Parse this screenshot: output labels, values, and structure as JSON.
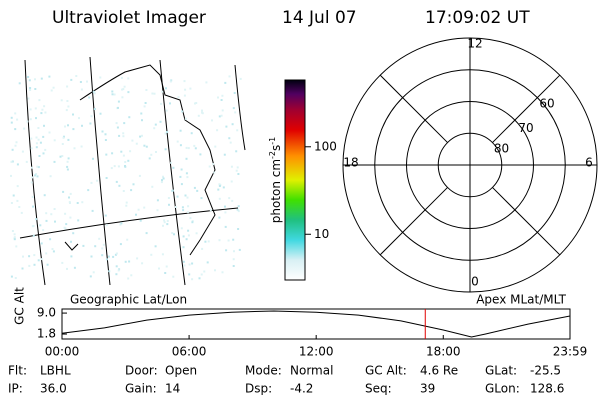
{
  "header": {
    "title": "Ultraviolet Imager",
    "date": "14 Jul 07",
    "time": "17:09:02 UT"
  },
  "colorbar": {
    "label": [
      "photon cm",
      "-2",
      "s",
      "-1"
    ],
    "lim": [
      3,
      580
    ],
    "log": true,
    "ticks": [
      10,
      100
    ]
  },
  "polar": {
    "rlim": [
      90,
      50
    ],
    "lat_ticks": [
      60,
      70,
      80
    ],
    "hour_ticks": [
      0,
      6,
      12,
      18
    ]
  },
  "chart_data": {
    "type": "line",
    "ylabel": "GC Alt",
    "left_label": "Geographic Lat/Lon",
    "right_label": "Apex MLat/MLT",
    "x": [
      0,
      120,
      240,
      360,
      480,
      600,
      720,
      840,
      960,
      1080,
      1160,
      1200,
      1320,
      1439
    ],
    "values": [
      2.1,
      3.9,
      6.6,
      8.3,
      9.3,
      9.7,
      9.3,
      8.3,
      6.3,
      3.2,
      0.8,
      1.8,
      5.2,
      8.0
    ],
    "color": "#000000",
    "marker_x": 1029,
    "marker_color": "#e00000",
    "xlim": [
      0,
      1439
    ],
    "ylim": [
      0.1,
      10.4
    ],
    "xticks": [
      {
        "value": 0,
        "label": "00:00"
      },
      {
        "value": 360,
        "label": "06:00"
      },
      {
        "value": 720,
        "label": "12:00"
      },
      {
        "value": 1080,
        "label": "18:00"
      },
      {
        "value": 1439,
        "label": "23:59"
      }
    ],
    "yticks": [
      1.8,
      {
        "value": 9,
        "label": "9.0"
      }
    ]
  },
  "info": [
    [
      {
        "key": "Flt:",
        "value": "LBHL"
      },
      {
        "key": "Door:",
        "value": "Open"
      },
      {
        "key": "Mode:",
        "value": "Normal"
      },
      {
        "key": "GC Alt:",
        "value": "4.6 Re"
      },
      {
        "key": "GLat:",
        "value": "-25.5"
      }
    ],
    [
      {
        "key": "IP:",
        "value": "36.0"
      },
      {
        "key": "Gain:",
        "value": "14"
      },
      {
        "key": "Dsp:",
        "value": "-4.2"
      },
      {
        "key": "Seq:",
        "value": "39"
      },
      {
        "key": "GLon:",
        "value": "128.6"
      }
    ]
  ]
}
